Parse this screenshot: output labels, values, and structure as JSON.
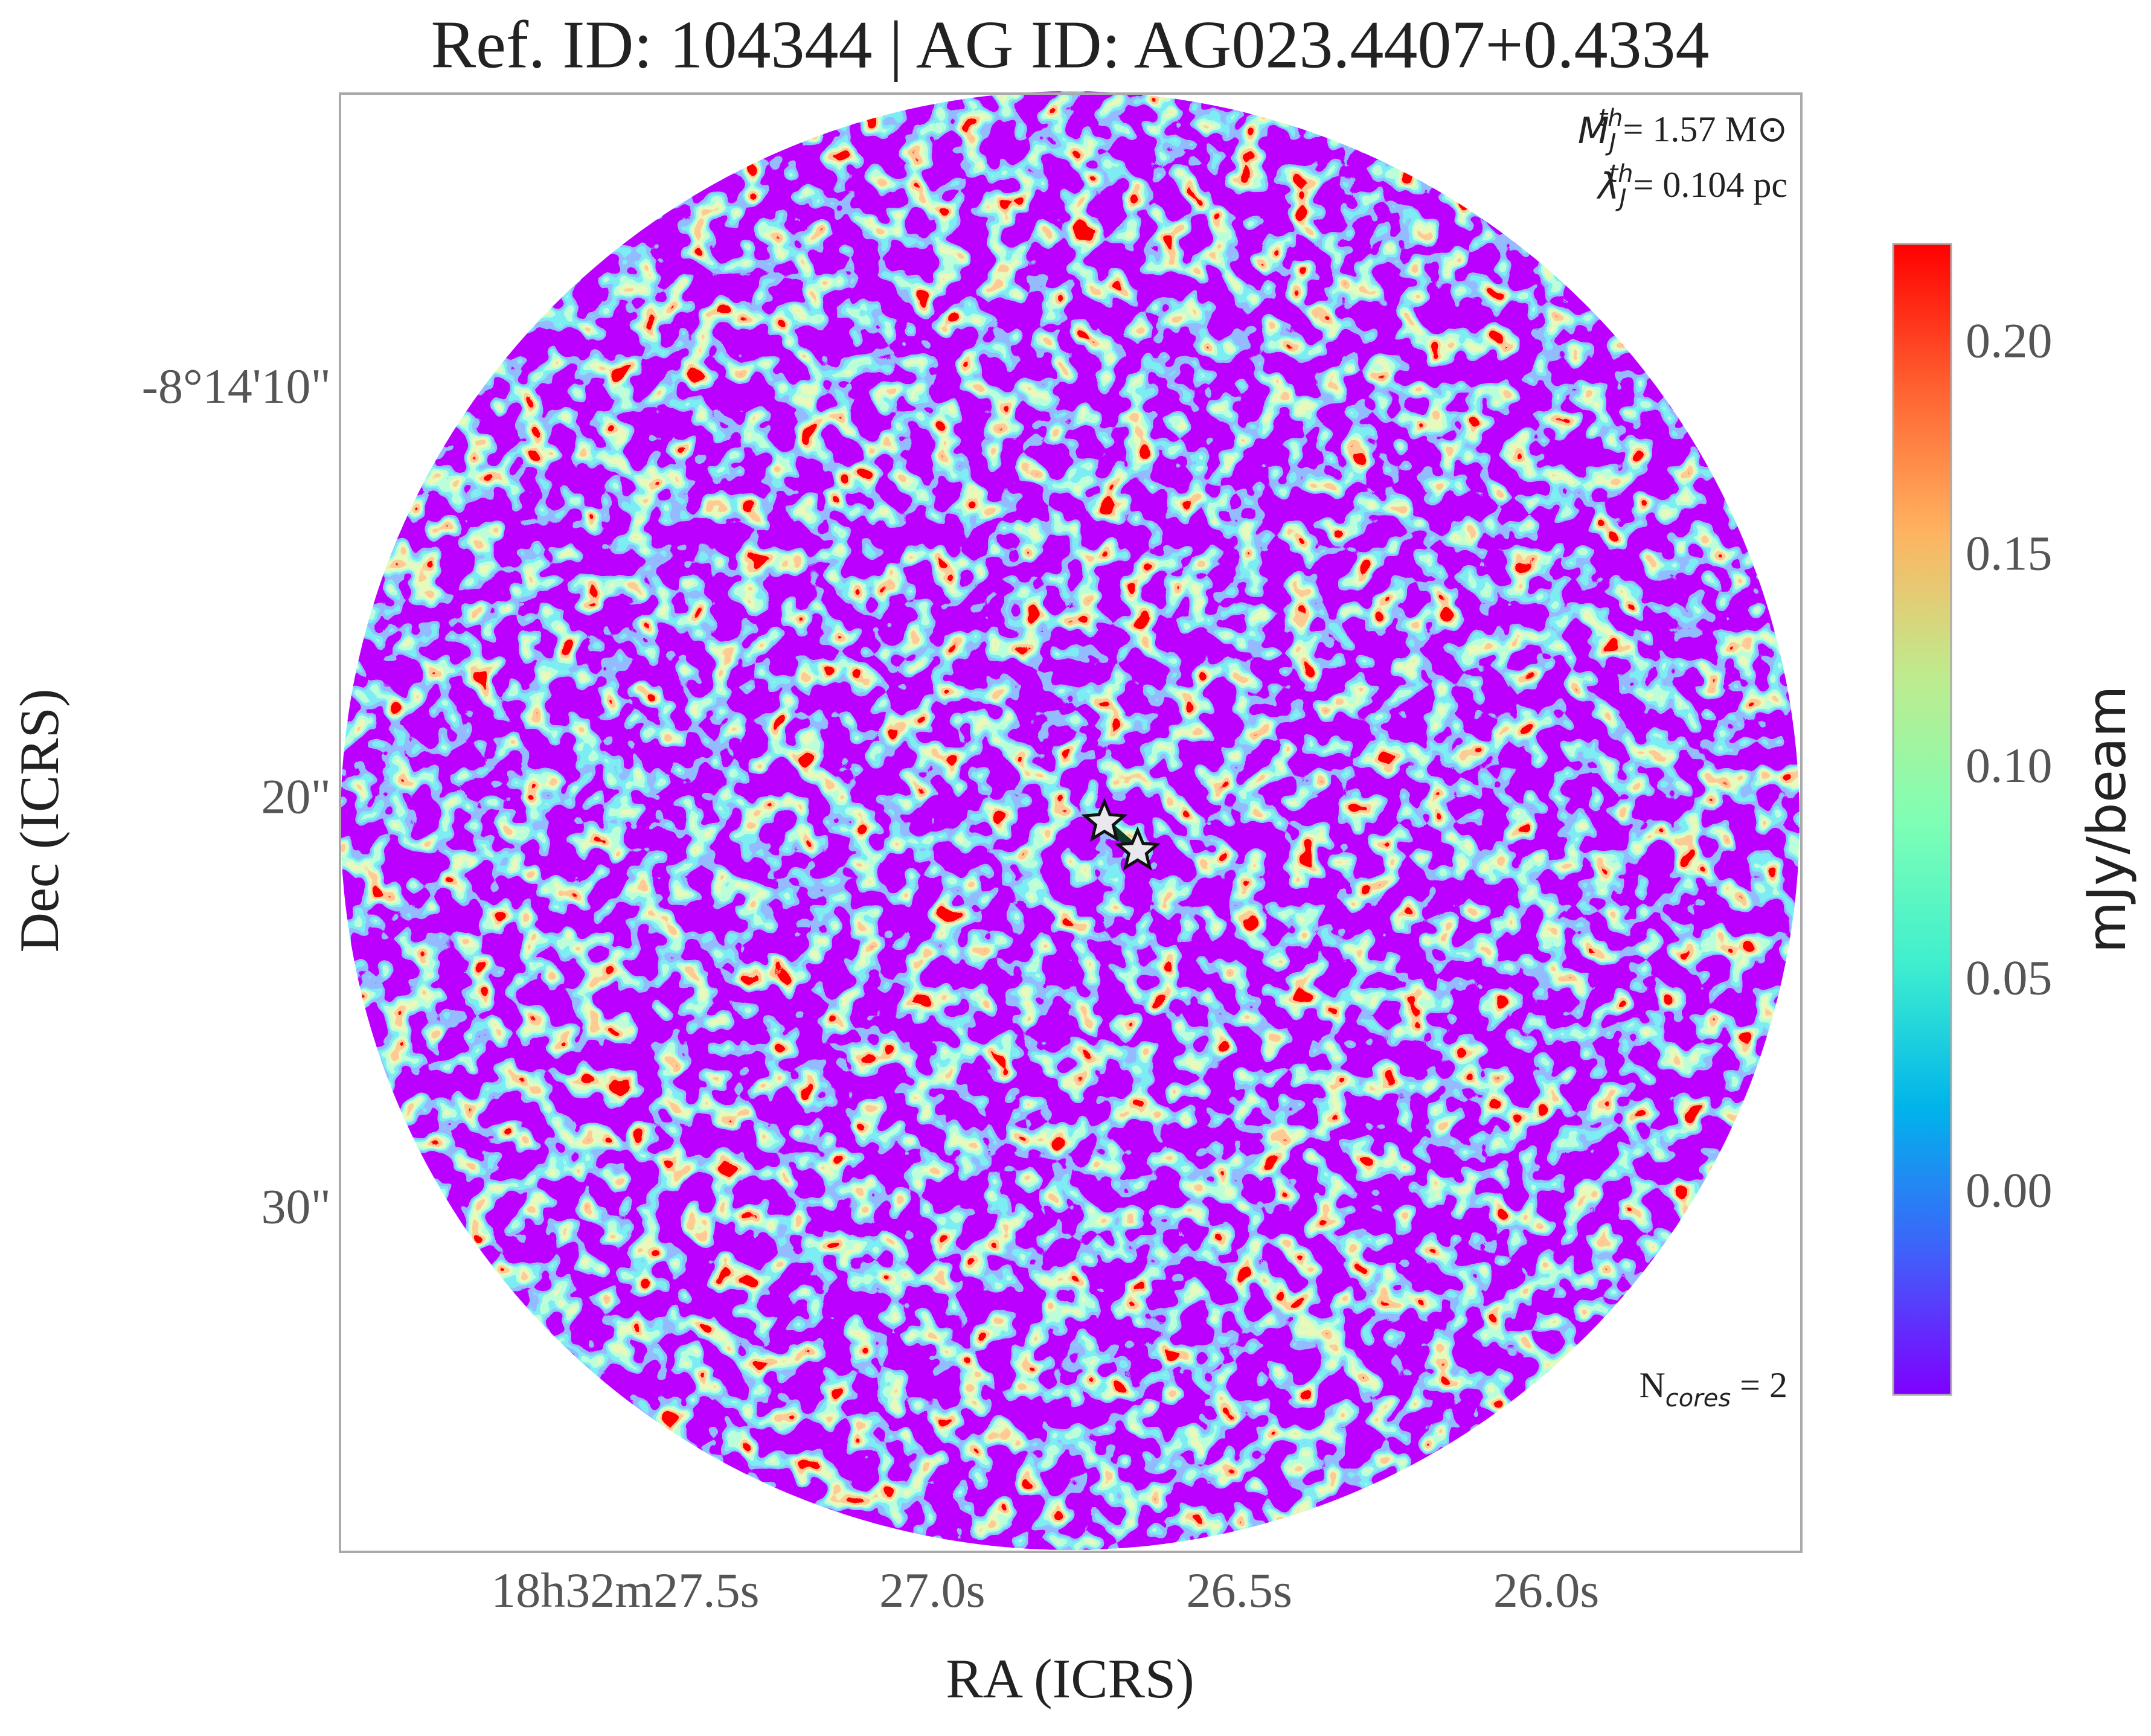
{
  "chart_data": {
    "type": "image",
    "title": "Ref. ID: 104344 | AG ID: AG023.4407+0.4334",
    "xlabel": "RA (ICRS)",
    "ylabel": "Dec (ICRS)",
    "xlim": [
      27.94,
      25.56
    ],
    "xticks": [
      {
        "value": 27.5,
        "label": "18h32m27.5s"
      },
      {
        "value": 27.0,
        "label": "27.0s"
      },
      {
        "value": 26.5,
        "label": "26.5s"
      },
      {
        "value": 26.0,
        "label": "26.0s"
      }
    ],
    "ylim": [
      38.29,
      2.74
    ],
    "yticks": [
      {
        "value": 10,
        "label": "-8°14'10\""
      },
      {
        "value": 20,
        "label": "20\""
      },
      {
        "value": 30,
        "label": "30\""
      }
    ],
    "colorbar": {
      "label": "mJy/beam",
      "lim": [
        -0.047,
        0.224
      ],
      "ticks": [
        {
          "value": 0,
          "label": "0.00"
        },
        {
          "value": 0.05,
          "label": "0.05"
        },
        {
          "value": 0.1,
          "label": "0.10"
        },
        {
          "value": 0.15,
          "label": "0.15"
        },
        {
          "value": 0.2,
          "label": "0.20"
        }
      ],
      "colors": [
        "#7f00ff",
        "#3f61fa",
        "#00b4eb",
        "#3fefcf",
        "#7fffb4",
        "#bfeb8e",
        "#ffb360",
        "#ff6130",
        "#ff0000"
      ]
    },
    "cores": [
      {
        "ra": 26.695,
        "dec": 20.5
      },
      {
        "ra": 26.641,
        "dec": 21.2
      }
    ],
    "annotations": [
      {
        "symbol": "M",
        "sub": "J",
        "sup": "th",
        "text": "= 1.57 M⊙"
      },
      {
        "symbol": "λ",
        "sub": "J",
        "sup": "th",
        "text": "= 0.104 pc"
      },
      {
        "symbol": "N",
        "sub": "cores",
        "text": " = 2"
      }
    ]
  }
}
